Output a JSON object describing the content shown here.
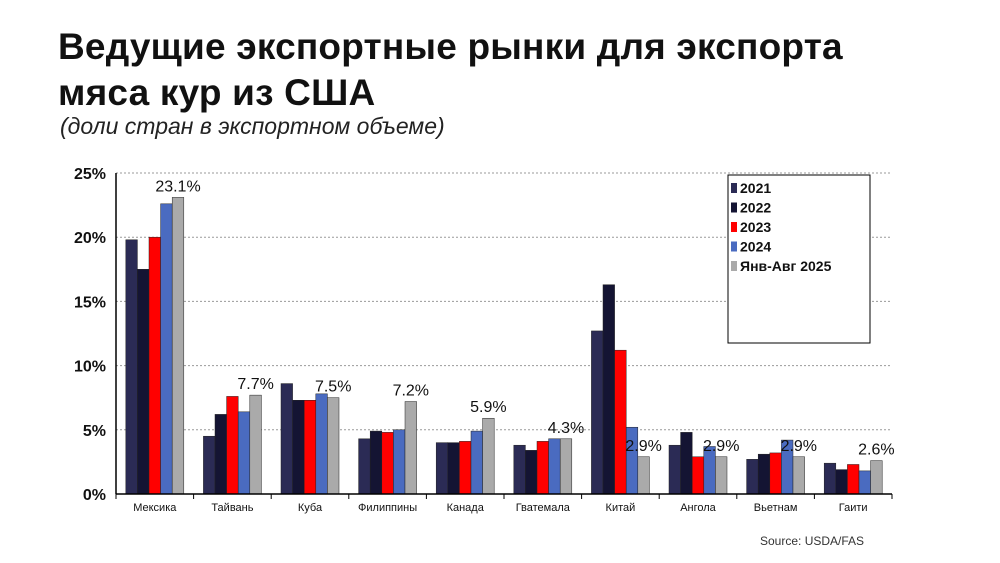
{
  "title_line1": "Ведущие экспортные рынки для экспорта",
  "title_line2": "мяса кур из США",
  "subtitle": "(доли стран в экспортном объеме)",
  "source": "Source: USDA/FAS",
  "chart_data": {
    "type": "bar",
    "title": "Ведущие экспортные рынки для экспорта мяса кур из США",
    "xlabel": "",
    "ylabel": "",
    "ylim": [
      0,
      25
    ],
    "yticks": [
      0,
      5,
      10,
      15,
      20,
      25
    ],
    "ytick_labels": [
      "0%",
      "5%",
      "10%",
      "15%",
      "20%",
      "25%"
    ],
    "grid": true,
    "legend_position": "top-right",
    "categories": [
      "Мексика",
      "Тайвань",
      "Куба",
      "Филиппины",
      "Канада",
      "Гватемала",
      "Китай",
      "Ангола",
      "Вьетнам",
      "Гаити"
    ],
    "series": [
      {
        "name": "2021",
        "color": "#2b2b55",
        "values": [
          19.8,
          4.5,
          8.6,
          4.3,
          4.0,
          3.8,
          12.7,
          3.8,
          2.7,
          2.4
        ]
      },
      {
        "name": "2022",
        "color": "#141433",
        "values": [
          17.5,
          6.2,
          7.3,
          4.9,
          4.0,
          3.4,
          16.3,
          4.8,
          3.1,
          1.9
        ]
      },
      {
        "name": "2023",
        "color": "#ff0000",
        "values": [
          20.0,
          7.6,
          7.3,
          4.8,
          4.1,
          4.1,
          11.2,
          2.9,
          3.2,
          2.3
        ]
      },
      {
        "name": "2024",
        "color": "#4a6bc0",
        "values": [
          22.6,
          6.4,
          7.8,
          5.0,
          4.9,
          4.3,
          5.2,
          3.7,
          4.2,
          1.8
        ]
      },
      {
        "name": "Янв-Авг 2025",
        "color": "#aaaaaa",
        "values": [
          23.1,
          7.7,
          7.5,
          7.2,
          5.9,
          4.3,
          2.9,
          2.9,
          2.9,
          2.6
        ]
      }
    ],
    "data_labels": [
      "23.1%",
      "7.7%",
      "7.5%",
      "7.2%",
      "5.9%",
      "4.3%",
      "2.9%",
      "2.9%",
      "2.9%",
      "2.6%"
    ]
  }
}
